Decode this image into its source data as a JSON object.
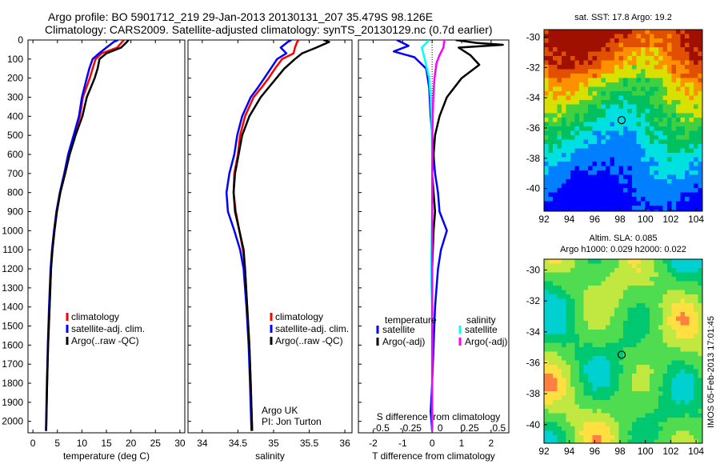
{
  "header": {
    "line1": "Argo profile: BO 5901712_219 29-Jan-2013 20130131_207 35.479S 98.126E",
    "line2": "Climatology: CARS2009. Satellite-adjusted climatology: synTS_20130129.nc (0.7d earlier)"
  },
  "colors": {
    "climatology": "#ff0000",
    "satellite": "#0000ff",
    "argo": "#000000",
    "satellite_salinity": "#00ffff",
    "argo_salinity": "#ff00ff"
  },
  "side": {
    "stamp": "IMOS 05-Feb-2013 17:01:45"
  },
  "chart_data": [
    {
      "id": "temperature",
      "type": "line",
      "xlabel": "temperature (deg C)",
      "ylabel": "",
      "xlim": [
        -1,
        31
      ],
      "ylim": [
        2060,
        0
      ],
      "xticks": [
        0,
        5,
        10,
        15,
        20,
        25,
        30
      ],
      "yticks": [
        0,
        100,
        200,
        300,
        400,
        500,
        600,
        700,
        800,
        900,
        1000,
        1100,
        1200,
        1300,
        1400,
        1500,
        1600,
        1700,
        1800,
        1900,
        2000
      ],
      "legend": [
        "climatology",
        "satellite-adj. clim.",
        "Argo(..raw -QC)"
      ],
      "series": [
        {
          "name": "climatology",
          "color": "#ff0000",
          "x": [
            18.6,
            18.2,
            17.2,
            14,
            12.8,
            12.2,
            11.6,
            10.9,
            10.2,
            9.6,
            8.4,
            7.3,
            6.5,
            5.6,
            4.9,
            4.4,
            4,
            3.7,
            3.4,
            3.1,
            2.9,
            2.7
          ],
          "y": [
            0,
            10,
            40,
            70,
            100,
            150,
            200,
            250,
            300,
            400,
            500,
            600,
            700,
            800,
            900,
            1000,
            1100,
            1200,
            1400,
            1600,
            1800,
            2050
          ]
        },
        {
          "name": "satellite-adj. clim.",
          "color": "#0000ff",
          "x": [
            17.4,
            16.5,
            15,
            13.5,
            12.2,
            11.5,
            11,
            10.5,
            10,
            9.4,
            8.3,
            7.2,
            6.4,
            5.5,
            4.8,
            4.3,
            3.9,
            3.6,
            3.3,
            3.05,
            2.85,
            2.65
          ],
          "y": [
            0,
            10,
            40,
            70,
            100,
            150,
            200,
            250,
            300,
            400,
            500,
            600,
            700,
            800,
            900,
            1000,
            1100,
            1200,
            1400,
            1600,
            1800,
            2050
          ]
        },
        {
          "name": "Argo(..raw -QC)",
          "color": "#000000",
          "x": [
            19.5,
            19.2,
            18,
            15,
            13.6,
            13.2,
            12.6,
            11.8,
            11,
            10.1,
            8.7,
            7.5,
            6.6,
            5.6,
            4.9,
            4.4,
            4,
            3.7,
            3.4,
            3.1,
            2.9,
            2.7
          ],
          "y": [
            0,
            10,
            40,
            70,
            100,
            150,
            200,
            250,
            300,
            400,
            500,
            600,
            700,
            800,
            900,
            1000,
            1100,
            1200,
            1400,
            1600,
            1800,
            2050
          ]
        }
      ]
    },
    {
      "id": "salinity",
      "type": "line",
      "xlabel": "salinity",
      "ylabel": "",
      "xlim": [
        33.8,
        36.1
      ],
      "ylim": [
        2060,
        0
      ],
      "xticks": [
        34,
        34.5,
        35,
        35.5,
        36
      ],
      "legend": [
        "climatology",
        "satellite-adj. clim.",
        "Argo(..raw -QC)"
      ],
      "annotation": [
        "Argo UK",
        "PI: Jon Turton"
      ],
      "series": [
        {
          "name": "climatology",
          "color": "#ff0000",
          "x": [
            35.35,
            35.33,
            35.3,
            35.28,
            35.12,
            35.02,
            34.93,
            34.83,
            34.72,
            34.6,
            34.53,
            34.5,
            34.45,
            34.44,
            34.47,
            34.52,
            34.57,
            34.6,
            34.63,
            34.66,
            34.68,
            34.7
          ],
          "y": [
            0,
            10,
            40,
            70,
            100,
            150,
            200,
            250,
            300,
            400,
            500,
            600,
            700,
            800,
            900,
            1000,
            1100,
            1200,
            1400,
            1600,
            1800,
            2050
          ]
        },
        {
          "name": "satellite-adj. clim.",
          "color": "#0000ff",
          "x": [
            35.25,
            35.2,
            35.1,
            35.18,
            35.05,
            34.96,
            34.87,
            34.78,
            34.68,
            34.56,
            34.49,
            34.45,
            34.38,
            34.34,
            34.36,
            34.45,
            34.53,
            34.58,
            34.62,
            34.65,
            34.67,
            34.69
          ],
          "y": [
            0,
            10,
            40,
            70,
            100,
            150,
            200,
            250,
            300,
            400,
            500,
            600,
            700,
            800,
            900,
            1000,
            1100,
            1200,
            1400,
            1600,
            1800,
            2050
          ]
        },
        {
          "name": "Argo(..raw -QC)",
          "color": "#000000",
          "x": [
            35.7,
            35.78,
            35.6,
            35.4,
            35.3,
            35.15,
            35.04,
            34.93,
            34.82,
            34.66,
            34.56,
            34.51,
            34.46,
            34.44,
            34.46,
            34.52,
            34.58,
            34.6,
            34.63,
            34.66,
            34.68,
            34.7
          ],
          "y": [
            0,
            10,
            40,
            70,
            100,
            150,
            200,
            250,
            300,
            400,
            500,
            600,
            700,
            800,
            900,
            1000,
            1100,
            1200,
            1400,
            1600,
            1800,
            2050
          ]
        }
      ]
    },
    {
      "id": "difference",
      "type": "line",
      "xlabel": "T difference from climatology",
      "xlabel_top": "S difference from climatology",
      "xlim": [
        -2.5,
        2.6
      ],
      "ylim": [
        2060,
        0
      ],
      "xticks": [
        -2,
        -1,
        0,
        1,
        2
      ],
      "xticks_s": [
        "-0.5",
        "-0.25",
        "0",
        "0.25",
        "0.5"
      ],
      "legend_headers": [
        "temperature",
        "salinity"
      ],
      "legend": [
        "satellite",
        "Argo(-adj)",
        "satellite",
        "Argo(-adj)"
      ],
      "series": [
        {
          "name": "satellite",
          "variable": "temperature",
          "color": "#0000ff",
          "x": [
            -1.2,
            -0.8,
            -1.3,
            -0.6,
            -0.2,
            -0.1,
            -0.05,
            0,
            0.05,
            0.1,
            0.15,
            0.2,
            0.25,
            0.5,
            0.3,
            0.2,
            0.1,
            0.05,
            0,
            -0.05,
            0
          ],
          "y": [
            0,
            30,
            60,
            90,
            150,
            250,
            400,
            500,
            600,
            700,
            750,
            800,
            900,
            1000,
            1100,
            1200,
            1400,
            1600,
            1800,
            1950,
            2050
          ]
        },
        {
          "name": "Argo(-adj)",
          "variable": "temperature",
          "color": "#000000",
          "x": [
            0.8,
            1.5,
            2.4,
            0.9,
            1.3,
            1.6,
            1.0,
            0.5,
            0.25,
            0.1,
            0.05,
            0,
            0.05,
            0.1,
            0.05,
            0,
            0,
            0,
            0,
            0
          ],
          "y": [
            0,
            15,
            25,
            40,
            80,
            130,
            200,
            300,
            400,
            500,
            600,
            700,
            800,
            900,
            1000,
            1200,
            1400,
            1600,
            1800,
            2050
          ]
        },
        {
          "name": "satellite",
          "variable": "salinity",
          "color": "#00ffff",
          "x": [
            -0.1,
            -0.35,
            -0.25,
            -0.1,
            -0.05,
            -0.02,
            -0.01,
            0,
            0,
            0,
            0,
            -0.01,
            -0.02,
            -0.03,
            -0.02,
            0,
            0,
            0,
            0
          ],
          "y": [
            0,
            40,
            100,
            200,
            300,
            400,
            500,
            600,
            700,
            800,
            900,
            1000,
            1100,
            1200,
            1300,
            1400,
            1600,
            1800,
            2050
          ]
        },
        {
          "name": "Argo(-adj)",
          "variable": "salinity",
          "color": "#ff00ff",
          "x": [
            0.42,
            0.38,
            0.25,
            0.15,
            0.08,
            0.04,
            0.02,
            0.01,
            0.01,
            0,
            0,
            0,
            0,
            0,
            0
          ],
          "y": [
            0,
            40,
            80,
            120,
            200,
            300,
            400,
            500,
            600,
            700,
            800,
            1000,
            1200,
            1600,
            2050
          ]
        }
      ]
    },
    {
      "id": "sst_map",
      "type": "heatmap",
      "title": "sat. SST: 17.8 Argo: 19.2",
      "xlim": [
        92,
        104.5
      ],
      "ylim": [
        -41.5,
        -29.5
      ],
      "xticks": [
        92,
        94,
        96,
        98,
        100,
        102,
        104
      ],
      "yticks": [
        -30,
        -32,
        -34,
        -36,
        -38,
        -40
      ],
      "marker": {
        "lon": 98.126,
        "lat": -35.479
      }
    },
    {
      "id": "sla_map",
      "type": "heatmap",
      "title_lines": [
        "Altim. SLA: 0.085",
        "Argo h1000: 0.029 h2000: 0.022"
      ],
      "xlim": [
        92,
        104.5
      ],
      "ylim": [
        -41.2,
        -29.3
      ],
      "xticks": [
        92,
        94,
        96,
        98,
        100,
        102,
        104
      ],
      "yticks": [
        -30,
        -32,
        -34,
        -36,
        -38,
        -40
      ],
      "marker": {
        "lon": 98.126,
        "lat": -35.479
      }
    }
  ]
}
